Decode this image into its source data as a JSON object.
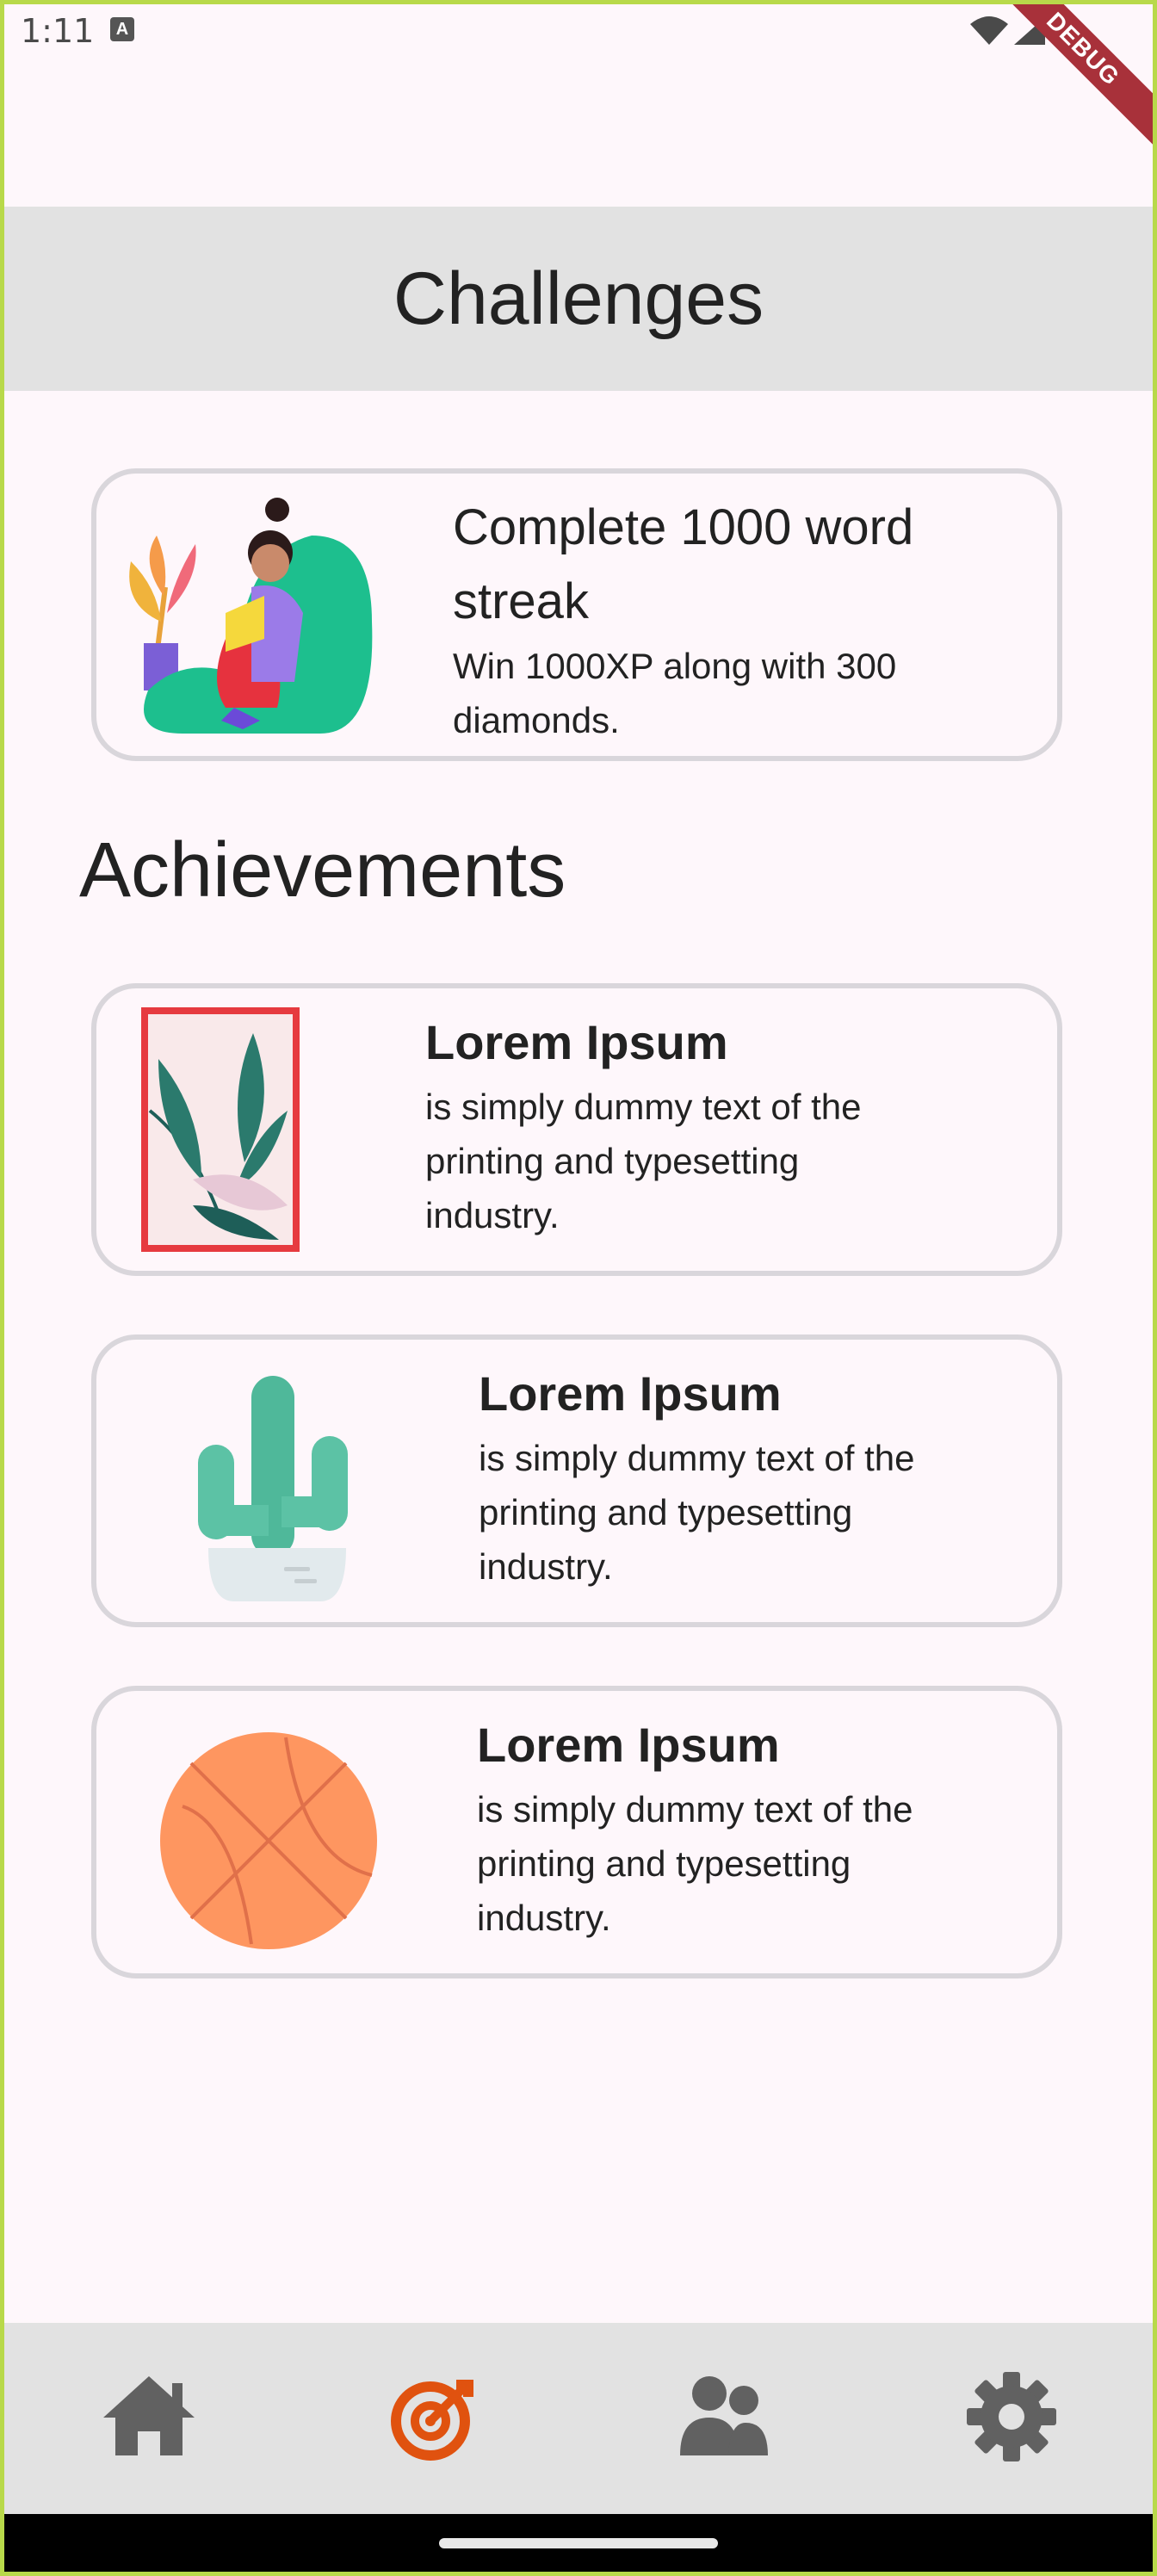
{
  "status_bar": {
    "time": "1:11",
    "debug_label": "DEBUG"
  },
  "app_bar": {
    "title": "Challenges"
  },
  "challenge": {
    "title": "Complete 1000 word\nstreak",
    "description": "Win 1000XP along with 300\ndiamonds.",
    "image_icon": "reading-person-illustration"
  },
  "achievements_heading": "Achievements",
  "achievements": [
    {
      "title": "Lorem Ipsum",
      "description": "is simply dummy text of the\nprinting and typesetting\nindustry.",
      "image_icon": "framed-plant-illustration"
    },
    {
      "title": "Lorem Ipsum",
      "description": "is simply dummy text of the\nprinting and typesetting\nindustry.",
      "image_icon": "cactus-illustration"
    },
    {
      "title": "Lorem Ipsum",
      "description": "is simply dummy text of the\nprinting and typesetting\nindustry.",
      "image_icon": "basketball-illustration"
    }
  ],
  "bottom_nav": {
    "items": [
      {
        "icon": "home-icon",
        "active": false
      },
      {
        "icon": "target-icon",
        "active": true
      },
      {
        "icon": "people-icon",
        "active": false
      },
      {
        "icon": "gear-icon",
        "active": false
      }
    ],
    "active_color": "#e0520f",
    "inactive_color": "#616161"
  },
  "colors": {
    "background": "#fef7fb",
    "app_bar": "#e2e2e2",
    "card_border": "#d9d6db"
  }
}
